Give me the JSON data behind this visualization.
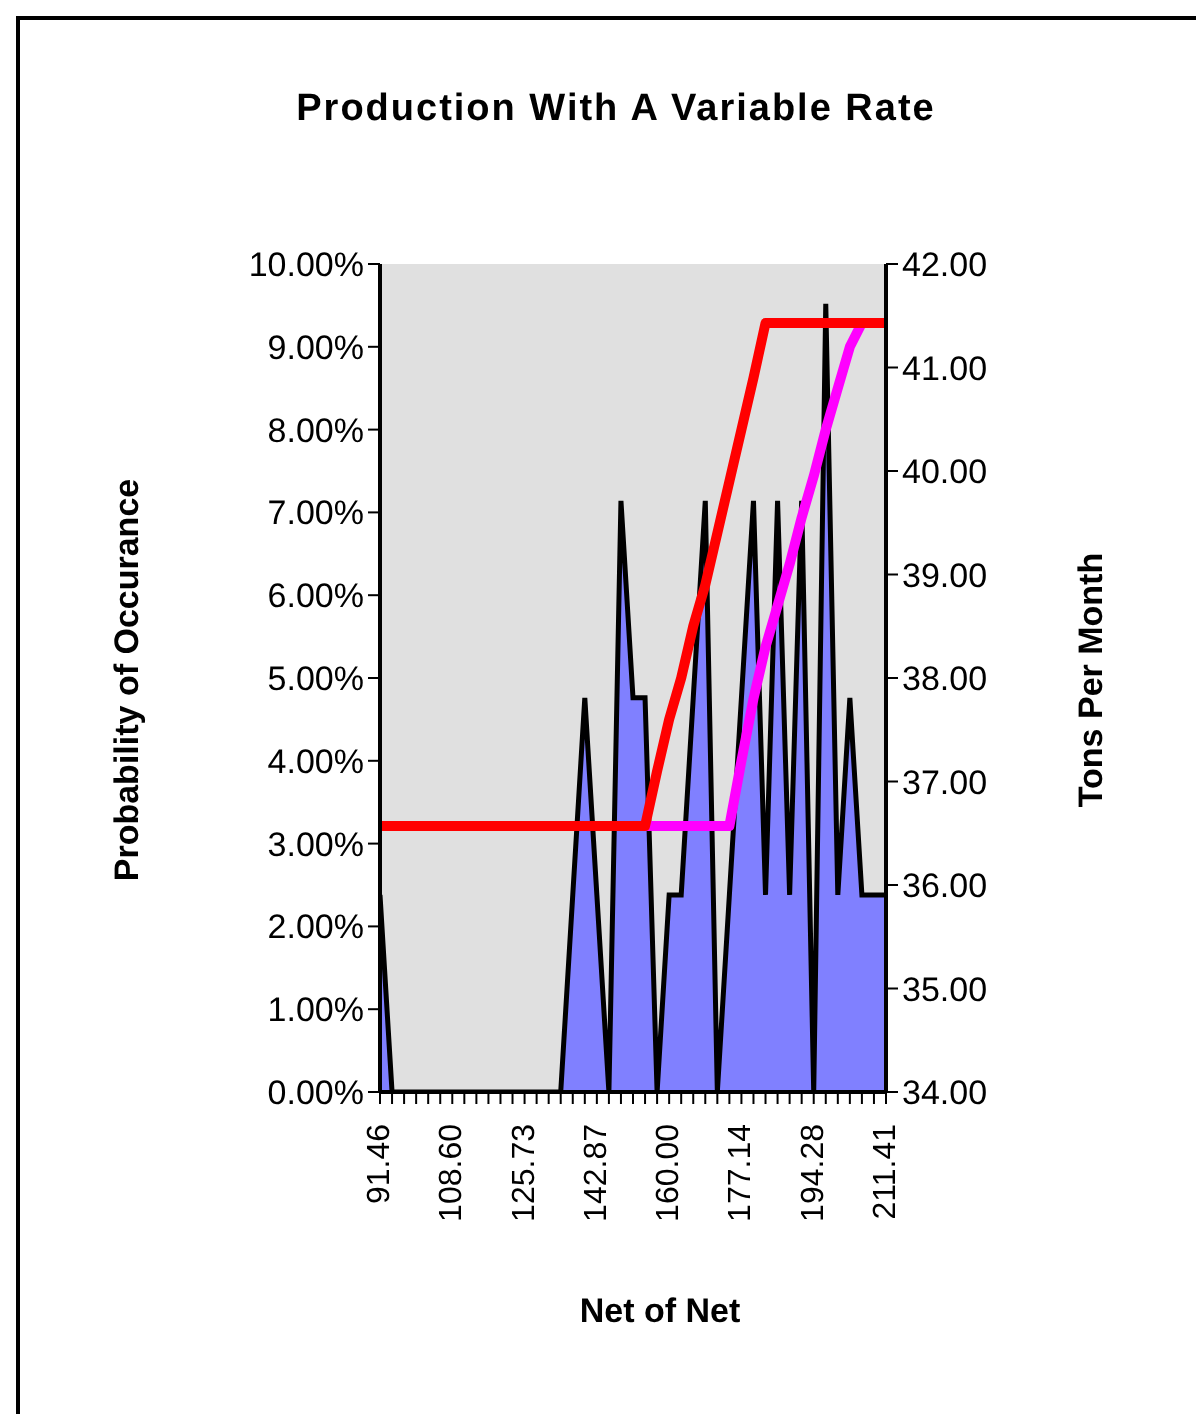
{
  "chart_data": {
    "type": "area",
    "title": "Production With A Variable Rate",
    "xlabel": "Net of Net",
    "ylabel": "Probability of Occurance",
    "y2label": "Tons Per Month",
    "categories": [
      "91.46",
      null,
      null,
      null,
      null,
      null,
      "108.60",
      null,
      null,
      null,
      null,
      null,
      "125.73",
      null,
      null,
      null,
      null,
      null,
      "142.87",
      null,
      null,
      null,
      null,
      null,
      "160.00",
      null,
      null,
      null,
      null,
      null,
      "177.14",
      null,
      null,
      null,
      null,
      null,
      "194.28",
      null,
      null,
      null,
      null,
      null,
      "211.41"
    ],
    "series": [
      {
        "color": "#8080ff",
        "values": [
          2.38,
          0,
          0,
          0,
          0,
          0,
          0,
          0,
          0,
          0,
          0,
          0,
          0,
          0,
          0,
          0,
          2.38,
          4.76,
          2.38,
          0,
          7.14,
          4.76,
          4.76,
          0,
          2.38,
          2.38,
          4.76,
          7.14,
          0,
          2.38,
          4.76,
          7.14,
          2.38,
          7.14,
          2.38,
          7.14,
          0,
          9.52,
          2.38,
          4.76,
          2.38,
          2.38,
          2.38
        ]
      },
      {
        "type": "line",
        "axis": "y2",
        "color": "#ff00ff",
        "values": [
          null,
          null,
          null,
          null,
          null,
          null,
          null,
          null,
          null,
          null,
          null,
          null,
          null,
          null,
          null,
          null,
          null,
          null,
          null,
          null,
          null,
          null,
          36.57,
          36.57,
          36.57,
          36.57,
          36.57,
          36.57,
          36.57,
          36.57,
          37.2,
          37.8,
          38.3,
          38.7,
          39.1,
          39.55,
          39.95,
          40.4,
          40.8,
          41.2,
          41.43,
          null,
          null
        ]
      },
      {
        "type": "line",
        "axis": "y2",
        "color": "#ff0000",
        "values": [
          36.57,
          36.57,
          36.57,
          36.57,
          36.57,
          36.57,
          36.57,
          36.57,
          36.57,
          36.57,
          36.57,
          36.57,
          36.57,
          36.57,
          36.57,
          36.57,
          36.57,
          36.57,
          36.57,
          36.57,
          36.57,
          36.57,
          36.57,
          37.1,
          37.6,
          38.0,
          38.5,
          38.9,
          39.4,
          39.9,
          40.4,
          40.9,
          41.43,
          41.43,
          41.43,
          41.43,
          41.43,
          41.43,
          41.43,
          41.43,
          41.43,
          41.43,
          41.43
        ]
      }
    ],
    "ylim": [
      0,
      10
    ],
    "yticks": [
      {
        "value": 0,
        "label": "0.00%"
      },
      {
        "value": 1,
        "label": "1.00%"
      },
      {
        "value": 2,
        "label": "2.00%"
      },
      {
        "value": 3,
        "label": "3.00%"
      },
      {
        "value": 4,
        "label": "4.00%"
      },
      {
        "value": 5,
        "label": "5.00%"
      },
      {
        "value": 6,
        "label": "6.00%"
      },
      {
        "value": 7,
        "label": "7.00%"
      },
      {
        "value": 8,
        "label": "8.00%"
      },
      {
        "value": 9,
        "label": "9.00%"
      },
      {
        "value": 10,
        "label": "10.00%"
      }
    ],
    "y2lim": [
      34,
      42
    ],
    "y2ticks": [
      {
        "value": 34,
        "label": "34.00"
      },
      {
        "value": 35,
        "label": "35.00"
      },
      {
        "value": 36,
        "label": "36.00"
      },
      {
        "value": 37,
        "label": "37.00"
      },
      {
        "value": 38,
        "label": "38.00"
      },
      {
        "value": 39,
        "label": "39.00"
      },
      {
        "value": 40,
        "label": "40.00"
      },
      {
        "value": 41,
        "label": "41.00"
      },
      {
        "value": 42,
        "label": "42.00"
      }
    ],
    "marker": "none",
    "line_style": "solid"
  }
}
